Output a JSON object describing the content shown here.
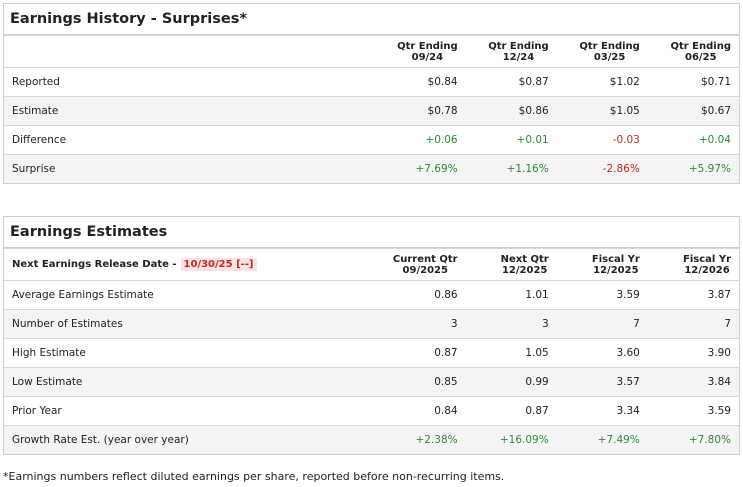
{
  "history": {
    "title": "Earnings History - Surprises*",
    "headers": [
      [
        "Qtr Ending",
        "09/24"
      ],
      [
        "Qtr Ending",
        "12/24"
      ],
      [
        "Qtr Ending",
        "03/25"
      ],
      [
        "Qtr Ending",
        "06/25"
      ]
    ],
    "rows": [
      {
        "label": "Reported",
        "values": [
          "$0.84",
          "$0.87",
          "$1.02",
          "$0.71"
        ]
      },
      {
        "label": "Estimate",
        "values": [
          "$0.78",
          "$0.86",
          "$1.05",
          "$0.67"
        ]
      },
      {
        "label": "Difference",
        "values": [
          "+0.06",
          "+0.01",
          "-0.03",
          "+0.04"
        ]
      },
      {
        "label": "Surprise",
        "values": [
          "+7.69%",
          "+1.16%",
          "-2.86%",
          "+5.97%"
        ]
      }
    ]
  },
  "estimates": {
    "title": "Earnings Estimates",
    "release_label": "Next Earnings Release Date -",
    "release_date": "10/30/25 [--]",
    "headers": [
      [
        "Current Qtr",
        "09/2025"
      ],
      [
        "Next Qtr",
        "12/2025"
      ],
      [
        "Fiscal Yr",
        "12/2025"
      ],
      [
        "Fiscal Yr",
        "12/2026"
      ]
    ],
    "rows": [
      {
        "label": "Average Earnings Estimate",
        "values": [
          "0.86",
          "1.01",
          "3.59",
          "3.87"
        ]
      },
      {
        "label": "Number of Estimates",
        "values": [
          "3",
          "3",
          "7",
          "7"
        ]
      },
      {
        "label": "High Estimate",
        "values": [
          "0.87",
          "1.05",
          "3.60",
          "3.90"
        ]
      },
      {
        "label": "Low Estimate",
        "values": [
          "0.85",
          "0.99",
          "3.57",
          "3.84"
        ]
      },
      {
        "label": "Prior Year",
        "values": [
          "0.84",
          "0.87",
          "3.34",
          "3.59"
        ]
      },
      {
        "label": "Growth Rate Est. (year over year)",
        "values": [
          "+2.38%",
          "+16.09%",
          "+7.49%",
          "+7.80%"
        ]
      }
    ]
  },
  "footnote": "*Earnings numbers reflect diluted earnings per share, reported before non-recurring items."
}
